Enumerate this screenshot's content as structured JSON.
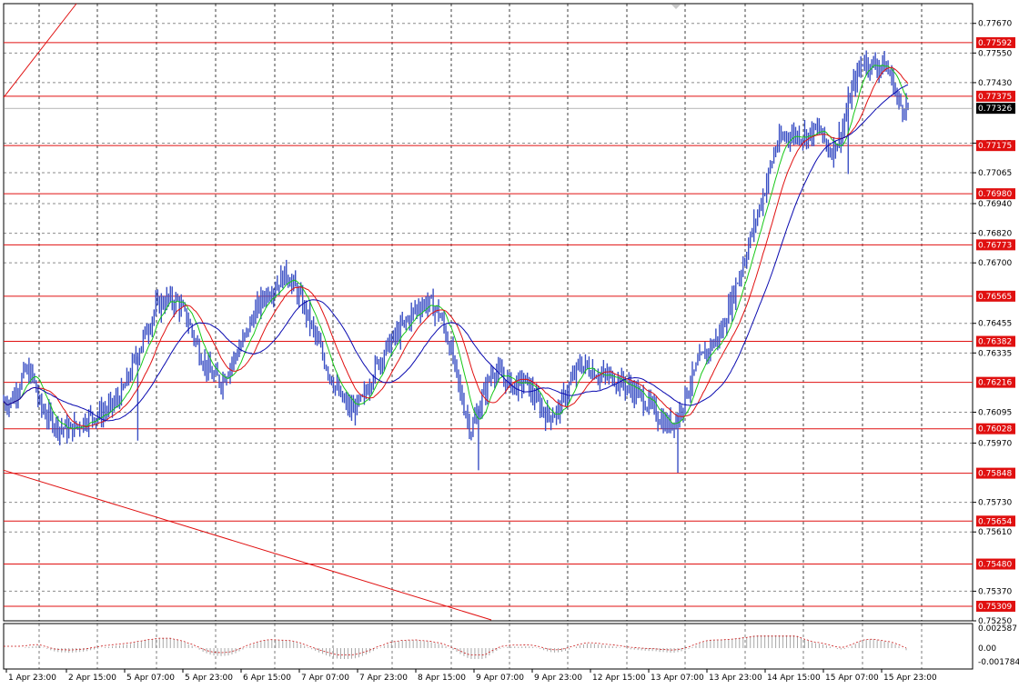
{
  "chart_data": {
    "type": "candlestick",
    "price_axis": {
      "ylim": [
        0.7525,
        0.7775
      ],
      "ticks": [
        "0.77670",
        "0.77550",
        "0.77430",
        "0.77185",
        "0.77065",
        "0.76940",
        "0.76820",
        "0.76700",
        "0.76455",
        "0.76335",
        "0.76095",
        "0.75970",
        "0.75730",
        "0.75610",
        "0.75370",
        "0.75250"
      ]
    },
    "time_axis": {
      "labels": [
        "1 Apr 23:00",
        "2 Apr 15:00",
        "5 Apr 07:00",
        "5 Apr 23:00",
        "6 Apr 15:00",
        "7 Apr 07:00",
        "7 Apr 23:00",
        "8 Apr 15:00",
        "9 Apr 07:00",
        "9 Apr 23:00",
        "12 Apr 15:00",
        "13 Apr 07:00",
        "13 Apr 23:00",
        "14 Apr 15:00",
        "15 Apr 07:00",
        "15 Apr 23:00"
      ]
    },
    "current_price": "0.77326",
    "levels": [
      "0.77592",
      "0.77375",
      "0.77175",
      "0.76980",
      "0.76773",
      "0.76565",
      "0.76382",
      "0.76216",
      "0.76028",
      "0.75848",
      "0.75654",
      "0.75480",
      "0.75309"
    ],
    "price_path": [
      [
        0,
        0.7614
      ],
      [
        4,
        0.7614
      ],
      [
        8,
        0.762
      ],
      [
        12,
        0.7626
      ],
      [
        16,
        0.7624
      ],
      [
        20,
        0.7612
      ],
      [
        24,
        0.7608
      ],
      [
        30,
        0.7604
      ],
      [
        36,
        0.7602
      ],
      [
        42,
        0.7605
      ],
      [
        48,
        0.7608
      ],
      [
        54,
        0.7609
      ],
      [
        60,
        0.7612
      ],
      [
        66,
        0.7618
      ],
      [
        72,
        0.763
      ],
      [
        78,
        0.7641
      ],
      [
        84,
        0.7652
      ],
      [
        90,
        0.7655
      ],
      [
        96,
        0.7654
      ],
      [
        102,
        0.7646
      ],
      [
        108,
        0.7634
      ],
      [
        114,
        0.7625
      ],
      [
        120,
        0.7622
      ],
      [
        126,
        0.763
      ],
      [
        132,
        0.7638
      ],
      [
        138,
        0.7649
      ],
      [
        144,
        0.7657
      ],
      [
        150,
        0.7661
      ],
      [
        156,
        0.7666
      ],
      [
        162,
        0.7658
      ],
      [
        168,
        0.7648
      ],
      [
        174,
        0.7636
      ],
      [
        180,
        0.7625
      ],
      [
        186,
        0.7615
      ],
      [
        192,
        0.761
      ],
      [
        198,
        0.7614
      ],
      [
        204,
        0.7626
      ],
      [
        210,
        0.7634
      ],
      [
        216,
        0.764
      ],
      [
        222,
        0.7646
      ],
      [
        228,
        0.7652
      ],
      [
        234,
        0.7654
      ],
      [
        240,
        0.765
      ],
      [
        246,
        0.7637
      ],
      [
        252,
        0.7617
      ],
      [
        258,
        0.7602
      ],
      [
        264,
        0.7615
      ],
      [
        270,
        0.7627
      ],
      [
        276,
        0.7623
      ],
      [
        282,
        0.762
      ],
      [
        288,
        0.7622
      ],
      [
        294,
        0.7614
      ],
      [
        300,
        0.7608
      ],
      [
        306,
        0.761
      ],
      [
        312,
        0.762
      ],
      [
        318,
        0.7629
      ],
      [
        324,
        0.7627
      ],
      [
        330,
        0.7624
      ],
      [
        336,
        0.7624
      ],
      [
        342,
        0.7621
      ],
      [
        348,
        0.7618
      ],
      [
        354,
        0.7614
      ],
      [
        360,
        0.7609
      ],
      [
        366,
        0.7604
      ],
      [
        372,
        0.7608
      ],
      [
        378,
        0.762
      ],
      [
        384,
        0.763
      ],
      [
        390,
        0.7636
      ],
      [
        396,
        0.7642
      ],
      [
        402,
        0.7656
      ],
      [
        408,
        0.767
      ],
      [
        414,
        0.7685
      ],
      [
        420,
        0.77
      ],
      [
        426,
        0.7717
      ],
      [
        432,
        0.7722
      ],
      [
        438,
        0.7722
      ],
      [
        444,
        0.7722
      ],
      [
        450,
        0.7724
      ],
      [
        456,
        0.7715
      ],
      [
        462,
        0.7722
      ],
      [
        468,
        0.774
      ],
      [
        474,
        0.7752
      ],
      [
        480,
        0.775
      ],
      [
        486,
        0.775
      ],
      [
        490,
        0.7745
      ],
      [
        494,
        0.7734
      ],
      [
        500,
        0.7733
      ]
    ],
    "indicator": {
      "top_label": "0.002587",
      "mid_label": "0.00",
      "bottom_label": "-0.001784"
    },
    "colors": {
      "candles": "#3a4fc4",
      "levels": "#e01010",
      "ma_fast": "#18c818",
      "ma_mid": "#e01010",
      "ma_slow": "#0a0ab0",
      "grid": "#000000",
      "current_price_bg": "#000000"
    }
  }
}
